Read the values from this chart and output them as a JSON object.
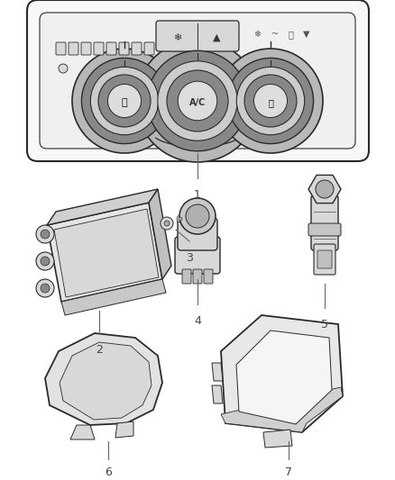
{
  "background_color": "#ffffff",
  "line_color": "#2a2a2a",
  "fill_light": "#f0f0f0",
  "fill_mid": "#d8d8d8",
  "fill_dark": "#b8b8b8",
  "label_color": "#444444",
  "figsize": [
    4.38,
    5.33
  ],
  "dpi": 100
}
